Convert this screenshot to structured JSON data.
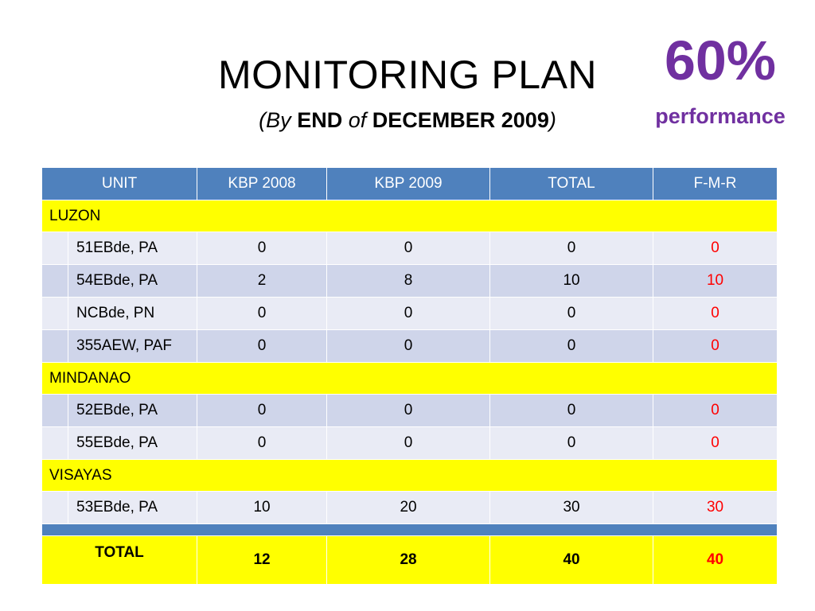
{
  "slide": {
    "title": "MONITORING PLAN",
    "subtitle": {
      "open_paren": "(",
      "by": "By",
      "end": "END",
      "of": "of",
      "month_year": "DECEMBER 2009",
      "close_paren": ")"
    },
    "percentage": "60%",
    "percentage_label": "performance"
  },
  "table": {
    "headers": [
      "UNIT",
      "KBP 2008",
      "KBP 2009",
      "TOTAL",
      "F-M-R"
    ],
    "regions": [
      {
        "name": "LUZON",
        "rows": [
          {
            "unit": "51EBde, PA",
            "kbp2008": "0",
            "kbp2009": "0",
            "total": "0",
            "fmr": "0"
          },
          {
            "unit": "54EBde, PA",
            "kbp2008": "2",
            "kbp2009": "8",
            "total": "10",
            "fmr": "10"
          },
          {
            "unit": "NCBde, PN",
            "kbp2008": "0",
            "kbp2009": "0",
            "total": "0",
            "fmr": "0"
          },
          {
            "unit": "355AEW, PAF",
            "kbp2008": "0",
            "kbp2009": "0",
            "total": "0",
            "fmr": "0"
          }
        ]
      },
      {
        "name": "MINDANAO",
        "rows": [
          {
            "unit": "52EBde, PA",
            "kbp2008": "0",
            "kbp2009": "0",
            "total": "0",
            "fmr": "0"
          },
          {
            "unit": "55EBde, PA",
            "kbp2008": "0",
            "kbp2009": "0",
            "total": "0",
            "fmr": "0"
          }
        ]
      },
      {
        "name": "VISAYAS",
        "rows": [
          {
            "unit": "53EBde, PA",
            "kbp2008": "10",
            "kbp2009": "20",
            "total": "30",
            "fmr": "30"
          }
        ]
      }
    ],
    "total": {
      "label": "TOTAL",
      "kbp2008": "12",
      "kbp2009": "28",
      "total": "40",
      "fmr": "40"
    }
  },
  "colors": {
    "header_blue": "#4f81bd",
    "highlight_yellow": "#ffff00",
    "accent_purple": "#7030a0",
    "fmr_red": "#ff0000",
    "row_light": "#e9ebf5",
    "row_dark": "#cfd5ea"
  }
}
